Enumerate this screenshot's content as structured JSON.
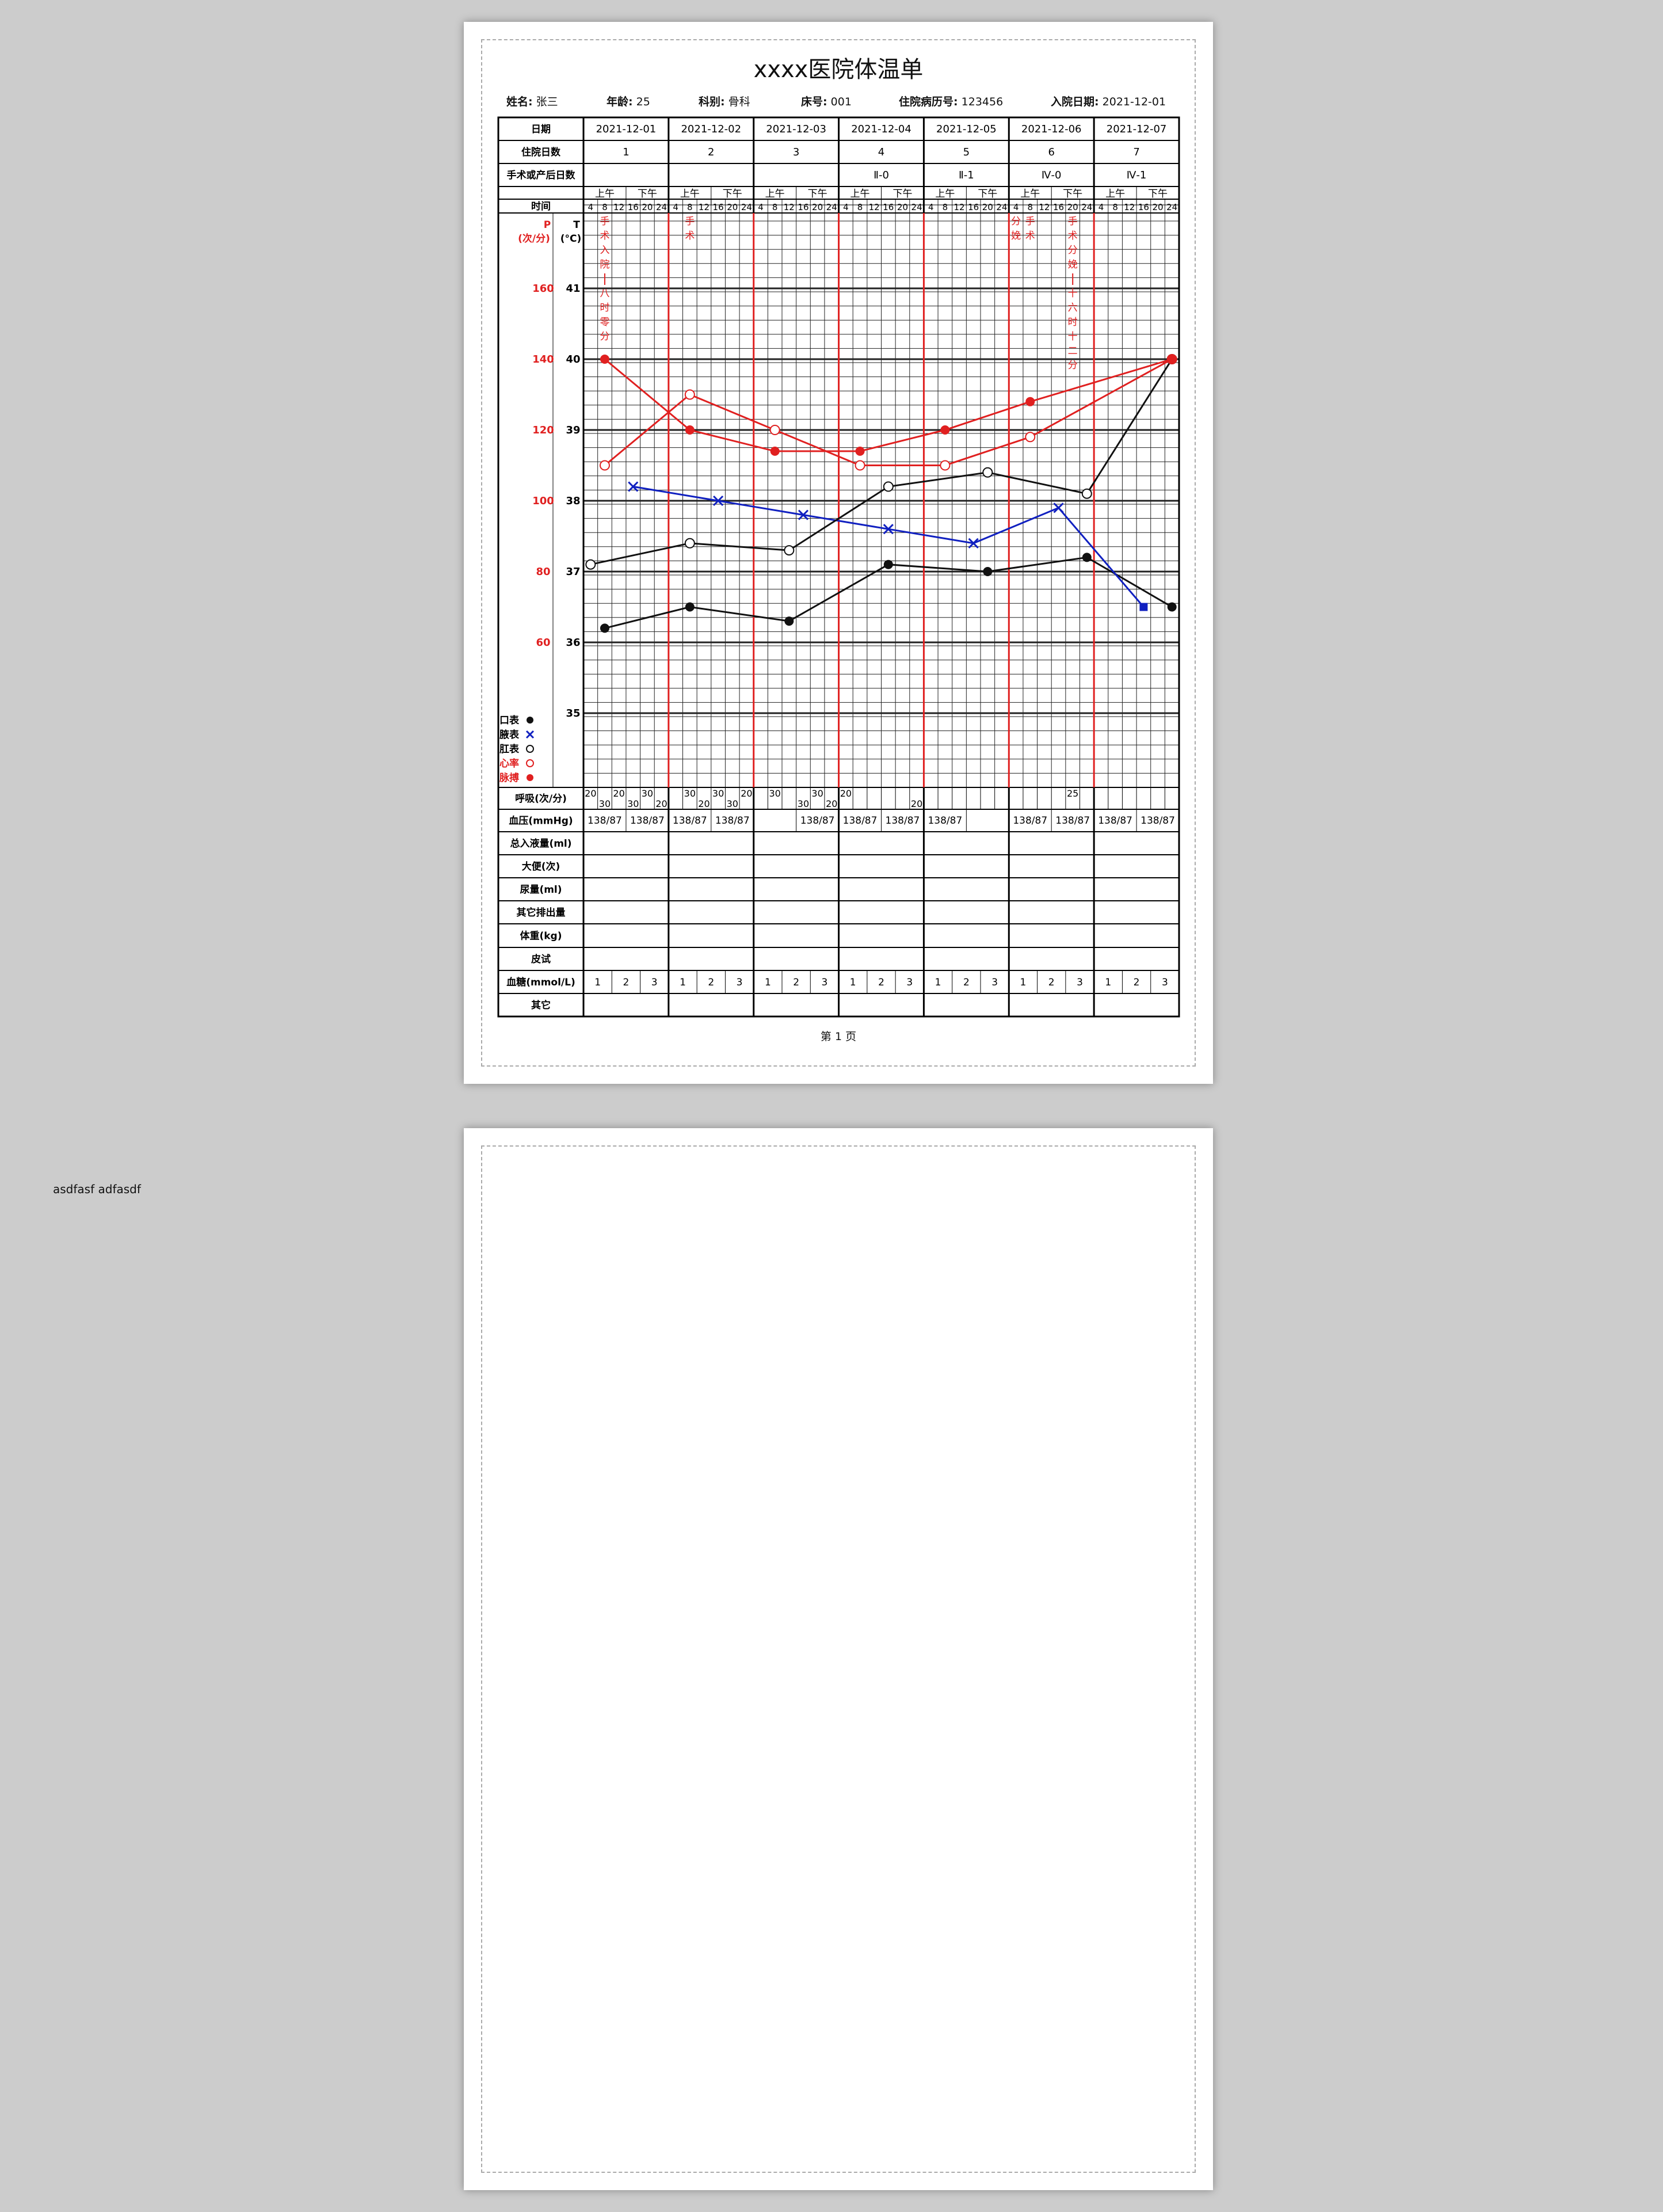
{
  "page1": {
    "title": "xxxx医院体温单",
    "info": [
      {
        "label": "姓名:",
        "value": "张三"
      },
      {
        "label": "年龄:",
        "value": "25"
      },
      {
        "label": "科别:",
        "value": "骨科"
      },
      {
        "label": "床号:",
        "value": "001"
      },
      {
        "label": "住院病历号:",
        "value": "123456"
      },
      {
        "label": "入院日期:",
        "value": "2021-12-01"
      }
    ],
    "footer": "第 1 页"
  },
  "page2": {
    "note": "asdfasf adfasdf"
  },
  "colors": {
    "red": "#e02020",
    "blue": "#1020c0",
    "black": "#111111",
    "grid": "#222222"
  },
  "row_labels": {
    "date": "日期",
    "hospital_day": "住院日数",
    "post_op_day": "手术或产后日数",
    "time": "时间",
    "resp": "呼吸(次/分)",
    "bp": "血压(mmHg)",
    "intake": "总入液量(ml)",
    "stool": "大便(次)",
    "urine": "尿量(ml)",
    "other_output": "其它排出量",
    "weight": "体重(kg)",
    "skin_test": "皮试",
    "glucose": "血糖(mmol/L)",
    "other": "其它"
  },
  "axis": {
    "pulse_head": "P",
    "pulse_unit": "(次/分)",
    "temp_head": "T",
    "temp_unit": "(°C)"
  },
  "time_labels": {
    "am": "上午",
    "pm": "下午",
    "hours": [
      "4",
      "8",
      "12",
      "16",
      "20",
      "24"
    ]
  },
  "legend": [
    {
      "label": "口表",
      "symbol": "filled-circle",
      "color": "#111111"
    },
    {
      "label": "腋表",
      "symbol": "cross",
      "color": "#1020c0"
    },
    {
      "label": "肛表",
      "symbol": "open-circle",
      "color": "#111111"
    },
    {
      "label": "心率",
      "symbol": "open-circle",
      "color": "#e02020"
    },
    {
      "label": "脉搏",
      "symbol": "filled-circle",
      "color": "#e02020"
    }
  ],
  "days": [
    {
      "date": "2021-12-01",
      "hospital_day": "1",
      "post_op_day": ""
    },
    {
      "date": "2021-12-02",
      "hospital_day": "2",
      "post_op_day": ""
    },
    {
      "date": "2021-12-03",
      "hospital_day": "3",
      "post_op_day": ""
    },
    {
      "date": "2021-12-04",
      "hospital_day": "4",
      "post_op_day": "Ⅱ-0"
    },
    {
      "date": "2021-12-05",
      "hospital_day": "5",
      "post_op_day": "Ⅱ-1"
    },
    {
      "date": "2021-12-06",
      "hospital_day": "6",
      "post_op_day": "Ⅳ-0"
    },
    {
      "date": "2021-12-07",
      "hospital_day": "7",
      "post_op_day": "Ⅳ-1"
    }
  ],
  "annotations": [
    {
      "day": 1,
      "slot": 2,
      "text": "手术入院—八时零分"
    },
    {
      "day": 2,
      "slot": 2,
      "text": "手术"
    },
    {
      "day": 6,
      "slot": 1,
      "text": "分娩"
    },
    {
      "day": 6,
      "slot": 2,
      "text": "手术"
    },
    {
      "day": 6,
      "slot": 5,
      "text": "手术分娩—十六时十二分"
    }
  ],
  "respiration": [
    {
      "day": 1,
      "slot": 1,
      "value": "20",
      "level": "high"
    },
    {
      "day": 1,
      "slot": 2,
      "value": "30",
      "level": "low"
    },
    {
      "day": 1,
      "slot": 3,
      "value": "20",
      "level": "high"
    },
    {
      "day": 1,
      "slot": 4,
      "value": "30",
      "level": "low"
    },
    {
      "day": 1,
      "slot": 5,
      "value": "30",
      "level": "high"
    },
    {
      "day": 1,
      "slot": 6,
      "value": "20",
      "level": "low"
    },
    {
      "day": 2,
      "slot": 2,
      "value": "30",
      "level": "high"
    },
    {
      "day": 2,
      "slot": 3,
      "value": "20",
      "level": "low"
    },
    {
      "day": 2,
      "slot": 4,
      "value": "30",
      "level": "high"
    },
    {
      "day": 2,
      "slot": 5,
      "value": "30",
      "level": "low"
    },
    {
      "day": 2,
      "slot": 6,
      "value": "20",
      "level": "high"
    },
    {
      "day": 3,
      "slot": 2,
      "value": "30",
      "level": "high"
    },
    {
      "day": 3,
      "slot": 4,
      "value": "30",
      "level": "low"
    },
    {
      "day": 3,
      "slot": 5,
      "value": "30",
      "level": "high"
    },
    {
      "day": 3,
      "slot": 6,
      "value": "20",
      "level": "low"
    },
    {
      "day": 4,
      "slot": 1,
      "value": "20",
      "level": "high"
    },
    {
      "day": 4,
      "slot": 6,
      "value": "20",
      "level": "low"
    },
    {
      "day": 6,
      "slot": 5,
      "value": "25",
      "level": "high"
    }
  ],
  "blood_pressure": [
    [
      "138/87",
      "138/87"
    ],
    [
      "138/87",
      "138/87"
    ],
    [
      "",
      "138/87"
    ],
    [
      "138/87",
      "138/87"
    ],
    [
      "138/87",
      ""
    ],
    [
      "138/87",
      "138/87"
    ],
    [
      "138/87",
      "138/87"
    ]
  ],
  "glucose_slots": [
    "1",
    "2",
    "3"
  ],
  "chart_data": {
    "type": "line",
    "title": "",
    "x_unit": "4-hour slots, 6 per day over 7 days",
    "temp_axis": {
      "ticks": [
        35,
        36,
        37,
        38,
        39,
        40,
        41
      ],
      "ylim": [
        33.0,
        42.0
      ]
    },
    "pulse_axis": {
      "ticks": [
        60,
        80,
        100,
        120,
        140,
        160
      ],
      "ylim": [
        20,
        200
      ]
    },
    "series": [
      {
        "name": "口表",
        "axis": "temp",
        "color": "#111111",
        "marker": "filled-circle",
        "points": [
          [
            1,
            2,
            36.2
          ],
          [
            2,
            2,
            36.5
          ],
          [
            3,
            3,
            36.3
          ],
          [
            4,
            4,
            37.1
          ],
          [
            5,
            5,
            37.0
          ],
          [
            6,
            6,
            37.2
          ],
          [
            7,
            6,
            36.5
          ]
        ]
      },
      {
        "name": "腋表",
        "axis": "temp",
        "color": "#1020c0",
        "marker": "cross",
        "points": [
          [
            1,
            4,
            38.2
          ],
          [
            2,
            4,
            38.0
          ],
          [
            3,
            4,
            37.8
          ],
          [
            4,
            4,
            37.6
          ],
          [
            5,
            4,
            37.4
          ],
          [
            6,
            4,
            37.9
          ],
          [
            7,
            4,
            36.5
          ]
        ]
      },
      {
        "name": "肛表",
        "axis": "temp",
        "color": "#111111",
        "marker": "open-circle",
        "points": [
          [
            1,
            1,
            37.1
          ],
          [
            2,
            2,
            37.4
          ],
          [
            3,
            3,
            37.3
          ],
          [
            4,
            4,
            38.2
          ],
          [
            5,
            5,
            38.4
          ],
          [
            6,
            6,
            38.1
          ],
          [
            7,
            6,
            40.0
          ]
        ]
      },
      {
        "name": "心率",
        "axis": "pulse",
        "color": "#e02020",
        "marker": "open-circle",
        "points": [
          [
            1,
            2,
            110
          ],
          [
            2,
            2,
            130
          ],
          [
            3,
            2,
            120
          ],
          [
            4,
            2,
            110
          ],
          [
            5,
            2,
            110
          ],
          [
            6,
            2,
            118
          ],
          [
            7,
            6,
            140
          ]
        ]
      },
      {
        "name": "脉搏",
        "axis": "pulse",
        "color": "#e02020",
        "marker": "filled-circle",
        "points": [
          [
            1,
            2,
            140
          ],
          [
            2,
            2,
            120
          ],
          [
            3,
            2,
            114
          ],
          [
            4,
            2,
            114
          ],
          [
            5,
            2,
            120
          ],
          [
            6,
            2,
            128
          ],
          [
            7,
            6,
            140
          ]
        ]
      }
    ]
  }
}
